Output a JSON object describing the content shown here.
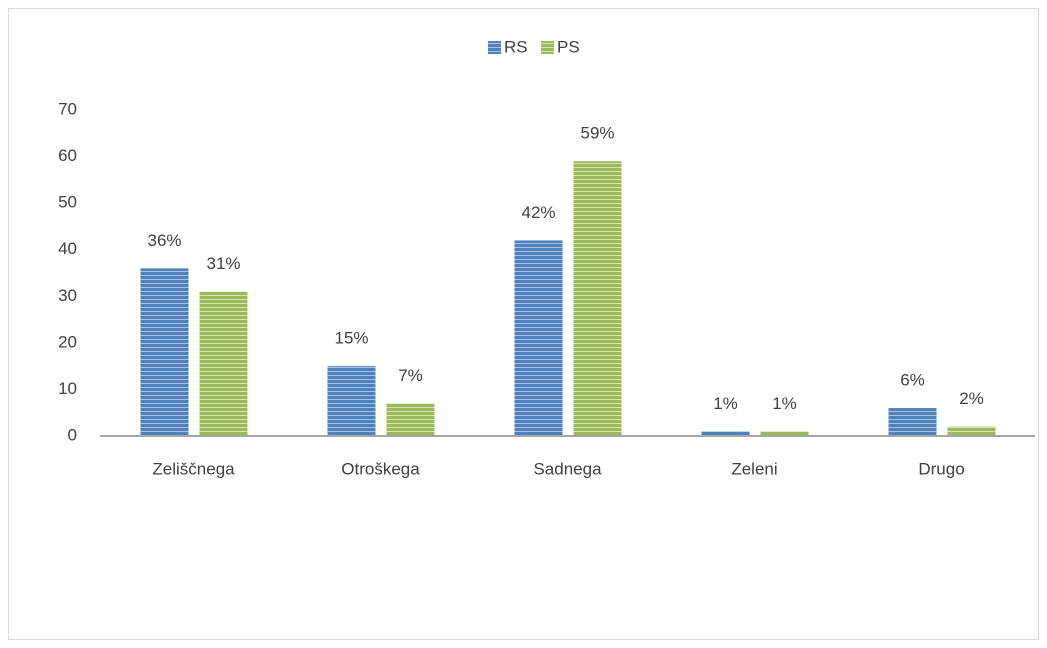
{
  "chart_data": {
    "type": "bar",
    "categories": [
      "Zeliščnega",
      "Otroškega",
      "Sadnega",
      "Zeleni",
      "Drugo"
    ],
    "series": [
      {
        "name": "RS",
        "color": "#4f81bd",
        "values": [
          36,
          15,
          42,
          1,
          6
        ],
        "value_labels": [
          "36%",
          "15%",
          "42%",
          "1%",
          "6%"
        ]
      },
      {
        "name": "PS",
        "color": "#9bbb59",
        "values": [
          31,
          7,
          59,
          1,
          2
        ],
        "value_labels": [
          "31%",
          "7%",
          "59%",
          "1%",
          "2%"
        ]
      }
    ],
    "ylim": [
      0,
      70
    ],
    "yticks": [
      0,
      10,
      20,
      30,
      40,
      50,
      60,
      70
    ],
    "grid": false,
    "legend": "top"
  }
}
